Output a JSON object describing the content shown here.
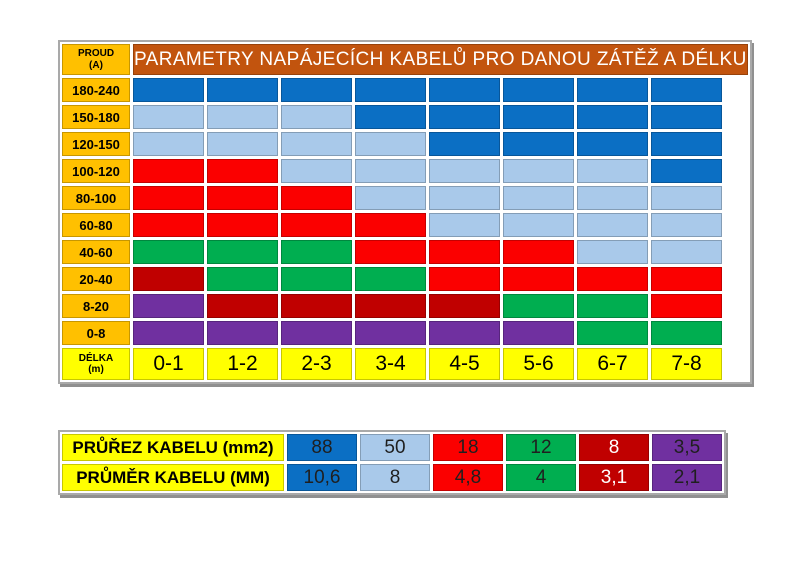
{
  "colors": {
    "dark_blue": "#0B6FC4",
    "light_blue": "#A9C9EA",
    "red": "#FB0000",
    "green": "#00AE50",
    "dark_red": "#C00000",
    "purple": "#7030A0",
    "gold": "#FFC000",
    "yellow": "#FFFF00",
    "title_bg": "#C2540E",
    "title_text": "#FFFFFF",
    "dark_text": "#1F1F1F",
    "light_text": "#FFFFFF"
  },
  "main_table": {
    "title": "PARAMETRY NAPÁJECÍCH KABELŮ PRO DANOU ZÁTĚŽ A DÉLKU",
    "corner_label_line1": "PROUD",
    "corner_label_line2": "(A)",
    "footer_label_line1": "DÉLKA",
    "footer_label_line2": "(m)",
    "row_labels": [
      "180-240",
      "150-180",
      "120-150",
      "100-120",
      "80-100",
      "60-80",
      "40-60",
      "20-40",
      "8-20",
      "0-8"
    ],
    "col_labels": [
      "0-1",
      "1-2",
      "2-3",
      "3-4",
      "4-5",
      "5-6",
      "6-7",
      "7-8"
    ],
    "grid": [
      [
        "dark_blue",
        "dark_blue",
        "dark_blue",
        "dark_blue",
        "dark_blue",
        "dark_blue",
        "dark_blue",
        "dark_blue"
      ],
      [
        "light_blue",
        "light_blue",
        "light_blue",
        "dark_blue",
        "dark_blue",
        "dark_blue",
        "dark_blue",
        "dark_blue"
      ],
      [
        "light_blue",
        "light_blue",
        "light_blue",
        "light_blue",
        "dark_blue",
        "dark_blue",
        "dark_blue",
        "dark_blue"
      ],
      [
        "red",
        "red",
        "light_blue",
        "light_blue",
        "light_blue",
        "light_blue",
        "light_blue",
        "dark_blue"
      ],
      [
        "red",
        "red",
        "red",
        "light_blue",
        "light_blue",
        "light_blue",
        "light_blue",
        "light_blue"
      ],
      [
        "red",
        "red",
        "red",
        "red",
        "light_blue",
        "light_blue",
        "light_blue",
        "light_blue"
      ],
      [
        "green",
        "green",
        "green",
        "red",
        "red",
        "red",
        "light_blue",
        "light_blue"
      ],
      [
        "dark_red",
        "green",
        "green",
        "green",
        "red",
        "red",
        "red",
        "red"
      ],
      [
        "purple",
        "dark_red",
        "dark_red",
        "dark_red",
        "dark_red",
        "green",
        "green",
        "red"
      ],
      [
        "purple",
        "purple",
        "purple",
        "purple",
        "purple",
        "purple",
        "green",
        "green"
      ]
    ]
  },
  "legend_table": {
    "rows": [
      {
        "label": "PRŮŘEZ KABELU (mm2)",
        "values": [
          {
            "text": "88",
            "color": "dark_blue",
            "text_color": "dark"
          },
          {
            "text": "50",
            "color": "light_blue",
            "text_color": "dark"
          },
          {
            "text": "18",
            "color": "red",
            "text_color": "dark"
          },
          {
            "text": "12",
            "color": "green",
            "text_color": "dark"
          },
          {
            "text": "8",
            "color": "dark_red",
            "text_color": "light"
          },
          {
            "text": "3,5",
            "color": "purple",
            "text_color": "dark"
          }
        ]
      },
      {
        "label": "PRŮMĚR KABELU (MM)",
        "values": [
          {
            "text": "10,6",
            "color": "dark_blue",
            "text_color": "dark"
          },
          {
            "text": "8",
            "color": "light_blue",
            "text_color": "dark"
          },
          {
            "text": "4,8",
            "color": "red",
            "text_color": "dark"
          },
          {
            "text": "4",
            "color": "green",
            "text_color": "dark"
          },
          {
            "text": "3,1",
            "color": "dark_red",
            "text_color": "light"
          },
          {
            "text": "2,1",
            "color": "purple",
            "text_color": "dark"
          }
        ]
      }
    ]
  },
  "chart_data": {
    "type": "heatmap",
    "title": "PARAMETRY NAPÁJECÍCH KABELŮ PRO DANOU ZÁTĚŽ A DÉLKU",
    "xlabel": "DÉLKA (m)",
    "ylabel": "PROUD (A)",
    "x_categories": [
      "0-1",
      "1-2",
      "2-3",
      "3-4",
      "4-5",
      "5-6",
      "6-7",
      "7-8"
    ],
    "y_categories": [
      "180-240",
      "150-180",
      "120-150",
      "100-120",
      "80-100",
      "60-80",
      "40-60",
      "20-40",
      "8-20",
      "0-8"
    ],
    "cell_values_cross_section_mm2": [
      [
        88,
        88,
        88,
        88,
        88,
        88,
        88,
        88
      ],
      [
        50,
        50,
        50,
        88,
        88,
        88,
        88,
        88
      ],
      [
        50,
        50,
        50,
        50,
        88,
        88,
        88,
        88
      ],
      [
        18,
        18,
        50,
        50,
        50,
        50,
        50,
        88
      ],
      [
        18,
        18,
        18,
        50,
        50,
        50,
        50,
        50
      ],
      [
        18,
        18,
        18,
        18,
        50,
        50,
        50,
        50
      ],
      [
        12,
        12,
        12,
        18,
        18,
        18,
        50,
        50
      ],
      [
        8,
        12,
        12,
        12,
        18,
        18,
        18,
        18
      ],
      [
        3.5,
        8,
        8,
        8,
        8,
        12,
        12,
        18
      ],
      [
        3.5,
        3.5,
        3.5,
        3.5,
        3.5,
        3.5,
        12,
        12
      ]
    ],
    "color_key": [
      {
        "color_name": "dark_blue",
        "cross_section_mm2": 88,
        "diameter_mm": 10.6
      },
      {
        "color_name": "light_blue",
        "cross_section_mm2": 50,
        "diameter_mm": 8
      },
      {
        "color_name": "red",
        "cross_section_mm2": 18,
        "diameter_mm": 4.8
      },
      {
        "color_name": "green",
        "cross_section_mm2": 12,
        "diameter_mm": 4
      },
      {
        "color_name": "dark_red",
        "cross_section_mm2": 8,
        "diameter_mm": 3.1
      },
      {
        "color_name": "purple",
        "cross_section_mm2": 3.5,
        "diameter_mm": 2.1
      }
    ],
    "legend_position": "bottom",
    "grid": "on"
  }
}
